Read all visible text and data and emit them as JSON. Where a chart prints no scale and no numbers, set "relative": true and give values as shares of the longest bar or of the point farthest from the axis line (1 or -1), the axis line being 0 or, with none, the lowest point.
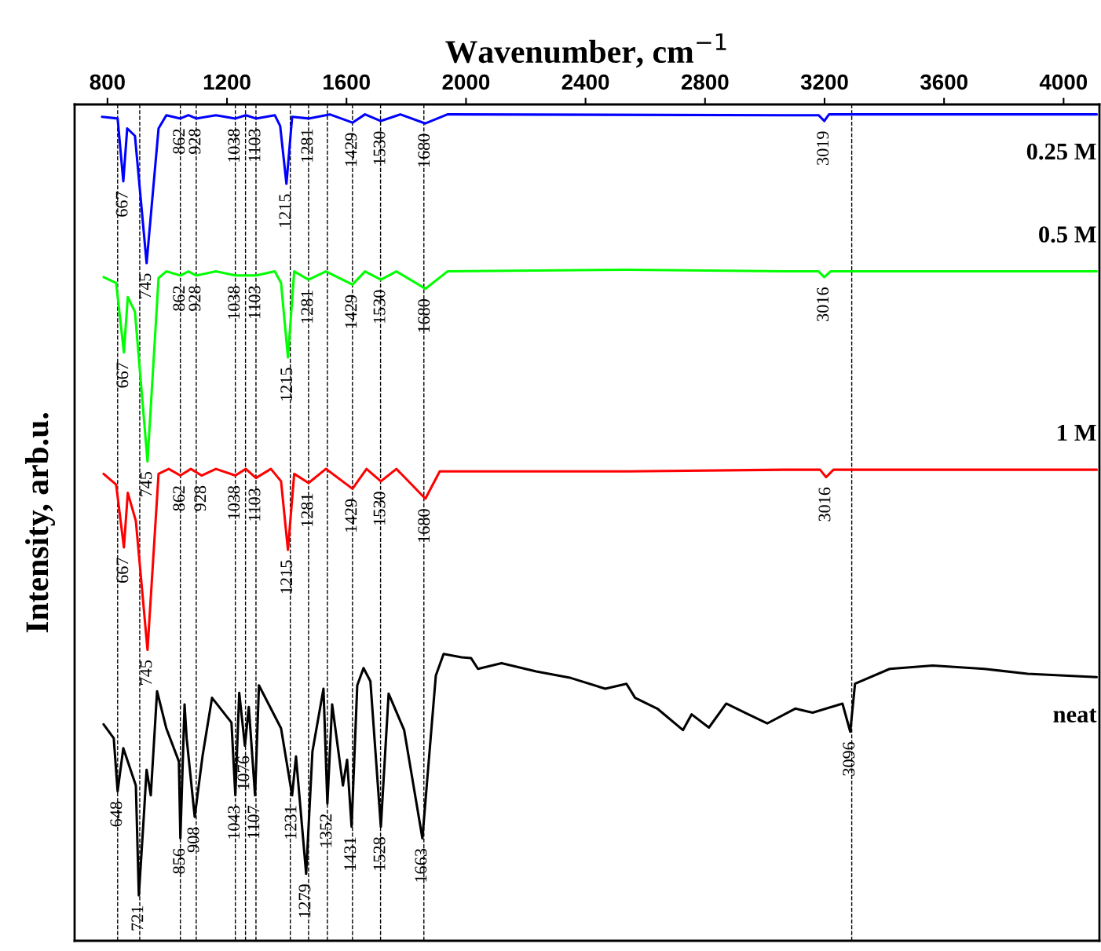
{
  "chart_data": {
    "type": "line",
    "relative": true,
    "xlabel": "Wavenumber, cm$^{−1}$",
    "ylabel": "Intensity, arb.u.",
    "xlim": [
      690,
      4120
    ],
    "xticks": [
      800,
      1200,
      1600,
      2000,
      2400,
      2800,
      3200,
      3600,
      4000
    ],
    "tick_labels": "x",
    "grid": false,
    "legend": false,
    "line_style": "solid",
    "marker": "none",
    "series": [
      {
        "name": "0.25 M",
        "color": "#0000ff",
        "x": [
          782,
          834,
          853,
          866,
          892,
          931,
          971,
          997,
          1044,
          1071,
          1097,
          1163,
          1228,
          1263,
          1297,
          1360,
          1378,
          1399,
          1418,
          1473,
          1544,
          1620,
          1662,
          1715,
          1780,
          1864,
          1938,
          3068,
          3180,
          3199,
          3215,
          4111
        ],
        "values": [
          0.997,
          0.995,
          0.919,
          0.983,
          0.974,
          0.82,
          0.983,
          0.999,
          0.995,
          0.999,
          0.995,
          0.999,
          0.995,
          0.999,
          0.995,
          0.999,
          0.986,
          0.916,
          0.997,
          0.995,
          1.0,
          0.99,
          1.0,
          0.992,
          1.0,
          0.989,
          1.0,
          0.999,
          0.999,
          0.992,
          1.0,
          1.0
        ]
      },
      {
        "name": "0.5 M",
        "color": "#00ff00",
        "x": [
          787,
          829,
          855,
          868,
          892,
          934,
          971,
          997,
          1044,
          1071,
          1097,
          1163,
          1228,
          1297,
          1360,
          1381,
          1404,
          1425,
          1473,
          1531,
          1620,
          1662,
          1715,
          1767,
          1864,
          1938,
          2542,
          3068,
          3180,
          3199,
          3220,
          4111
        ],
        "values": [
          0.803,
          0.796,
          0.712,
          0.779,
          0.761,
          0.58,
          0.802,
          0.81,
          0.805,
          0.81,
          0.805,
          0.81,
          0.805,
          0.805,
          0.81,
          0.796,
          0.706,
          0.81,
          0.8,
          0.81,
          0.794,
          0.81,
          0.8,
          0.81,
          0.789,
          0.81,
          0.812,
          0.81,
          0.81,
          0.803,
          0.81,
          0.81
        ]
      },
      {
        "name": "1 M",
        "color": "#ff0000",
        "x": [
          787,
          829,
          855,
          868,
          895,
          934,
          971,
          1005,
          1044,
          1079,
          1115,
          1163,
          1228,
          1263,
          1297,
          1347,
          1381,
          1404,
          1425,
          1473,
          1531,
          1620,
          1667,
          1715,
          1767,
          1864,
          1912,
          2542,
          3068,
          3185,
          3205,
          3230,
          4111
        ],
        "values": [
          0.565,
          0.552,
          0.476,
          0.542,
          0.508,
          0.352,
          0.565,
          0.571,
          0.563,
          0.571,
          0.563,
          0.571,
          0.563,
          0.571,
          0.56,
          0.571,
          0.556,
          0.473,
          0.565,
          0.554,
          0.571,
          0.547,
          0.571,
          0.556,
          0.571,
          0.535,
          0.568,
          0.568,
          0.57,
          0.57,
          0.561,
          0.57,
          0.57
        ]
      },
      {
        "name": "neat",
        "color": "#000000",
        "x": [
          787,
          821,
          834,
          853,
          895,
          905,
          921,
          931,
          945,
          966,
          997,
          1039,
          1044,
          1058,
          1065,
          1092,
          1118,
          1150,
          1215,
          1228,
          1241,
          1260,
          1273,
          1294,
          1307,
          1381,
          1418,
          1431,
          1465,
          1486,
          1523,
          1536,
          1552,
          1588,
          1602,
          1617,
          1636,
          1657,
          1680,
          1715,
          1741,
          1793,
          1854,
          1899,
          1925,
          1985,
          2017,
          2040,
          2119,
          2235,
          2351,
          2466,
          2537,
          2566,
          2640,
          2726,
          2755,
          2813,
          2871,
          2934,
          3008,
          3102,
          3160,
          3260,
          3286,
          3302,
          3418,
          3562,
          3735,
          3880,
          4111
        ],
        "values": [
          0.262,
          0.245,
          0.181,
          0.233,
          0.188,
          0.055,
          0.147,
          0.207,
          0.176,
          0.302,
          0.257,
          0.217,
          0.124,
          0.286,
          0.245,
          0.15,
          0.223,
          0.294,
          0.264,
          0.176,
          0.3,
          0.236,
          0.283,
          0.176,
          0.309,
          0.257,
          0.176,
          0.223,
          0.081,
          0.229,
          0.305,
          0.166,
          0.286,
          0.188,
          0.219,
          0.138,
          0.309,
          0.33,
          0.314,
          0.138,
          0.299,
          0.255,
          0.124,
          0.321,
          0.347,
          0.343,
          0.342,
          0.329,
          0.336,
          0.326,
          0.318,
          0.305,
          0.311,
          0.294,
          0.281,
          0.255,
          0.274,
          0.258,
          0.287,
          0.276,
          0.263,
          0.281,
          0.276,
          0.287,
          0.253,
          0.311,
          0.329,
          0.333,
          0.329,
          0.323,
          0.319
        ]
      }
    ],
    "ref_lines": [
      {
        "axis": "x",
        "value": 834,
        "label": null,
        "color": "#000000",
        "line_style": "dashed"
      },
      {
        "axis": "x",
        "value": 908,
        "label": null,
        "color": "#000000",
        "line_style": "dashed"
      },
      {
        "axis": "x",
        "value": 1044,
        "label": null,
        "color": "#000000",
        "line_style": "dashed"
      },
      {
        "axis": "x",
        "value": 1097,
        "label": null,
        "color": "#000000",
        "line_style": "dashed"
      },
      {
        "axis": "x",
        "value": 1228,
        "label": null,
        "color": "#000000",
        "line_style": "dashed"
      },
      {
        "axis": "x",
        "value": 1262,
        "label": null,
        "color": "#000000",
        "line_style": "dashed"
      },
      {
        "axis": "x",
        "value": 1297,
        "label": null,
        "color": "#000000",
        "line_style": "dashed"
      },
      {
        "axis": "x",
        "value": 1412,
        "label": null,
        "color": "#000000",
        "line_style": "dashed"
      },
      {
        "axis": "x",
        "value": 1473,
        "label": null,
        "color": "#000000",
        "line_style": "dashed"
      },
      {
        "axis": "x",
        "value": 1536,
        "label": null,
        "color": "#000000",
        "line_style": "dashed"
      },
      {
        "axis": "x",
        "value": 1620,
        "label": null,
        "color": "#000000",
        "line_style": "dashed"
      },
      {
        "axis": "x",
        "value": 1714,
        "label": null,
        "color": "#000000",
        "line_style": "dashed"
      },
      {
        "axis": "x",
        "value": 1859,
        "label": null,
        "color": "#000000",
        "line_style": "dashed"
      },
      {
        "axis": "x",
        "value": 3291,
        "label": null,
        "color": "#000000",
        "line_style": "dashed"
      }
    ],
    "annotations": [
      {
        "text": "667",
        "x": 853,
        "y": 0.919
      },
      {
        "text": "745",
        "x": 931,
        "y": 0.82
      },
      {
        "text": "862",
        "x": 1044,
        "y": 0.995
      },
      {
        "text": "928",
        "x": 1097,
        "y": 0.995
      },
      {
        "text": "1038",
        "x": 1228,
        "y": 0.995
      },
      {
        "text": "1103",
        "x": 1297,
        "y": 0.995
      },
      {
        "text": "1215",
        "x": 1399,
        "y": 0.916
      },
      {
        "text": "1281",
        "x": 1473,
        "y": 0.995
      },
      {
        "text": "1429",
        "x": 1620,
        "y": 0.99
      },
      {
        "text": "1530",
        "x": 1715,
        "y": 0.992
      },
      {
        "text": "1680",
        "x": 1864,
        "y": 0.989
      },
      {
        "text": "3019",
        "x": 3199,
        "y": 0.992
      },
      {
        "text": "667",
        "x": 855,
        "y": 0.712
      },
      {
        "text": "745",
        "x": 934,
        "y": 0.58
      },
      {
        "text": "862",
        "x": 1044,
        "y": 0.805
      },
      {
        "text": "928",
        "x": 1097,
        "y": 0.805
      },
      {
        "text": "1038",
        "x": 1228,
        "y": 0.805
      },
      {
        "text": "1103",
        "x": 1297,
        "y": 0.805
      },
      {
        "text": "1215",
        "x": 1404,
        "y": 0.706
      },
      {
        "text": "1281",
        "x": 1473,
        "y": 0.8
      },
      {
        "text": "1429",
        "x": 1620,
        "y": 0.794
      },
      {
        "text": "1530",
        "x": 1715,
        "y": 0.8
      },
      {
        "text": "1680",
        "x": 1864,
        "y": 0.789
      },
      {
        "text": "3016",
        "x": 3199,
        "y": 0.803
      },
      {
        "text": "667",
        "x": 855,
        "y": 0.476
      },
      {
        "text": "745",
        "x": 934,
        "y": 0.352
      },
      {
        "text": "862",
        "x": 1044,
        "y": 0.563
      },
      {
        "text": "928",
        "x": 1115,
        "y": 0.563
      },
      {
        "text": "1038",
        "x": 1228,
        "y": 0.563
      },
      {
        "text": "1103",
        "x": 1297,
        "y": 0.56
      },
      {
        "text": "1215",
        "x": 1404,
        "y": 0.473
      },
      {
        "text": "1281",
        "x": 1473,
        "y": 0.554
      },
      {
        "text": "1429",
        "x": 1620,
        "y": 0.547
      },
      {
        "text": "1530",
        "x": 1715,
        "y": 0.556
      },
      {
        "text": "1680",
        "x": 1864,
        "y": 0.535
      },
      {
        "text": "3016",
        "x": 3205,
        "y": 0.561
      },
      {
        "text": "648",
        "x": 834,
        "y": 0.181
      },
      {
        "text": "721",
        "x": 905,
        "y": 0.055
      },
      {
        "text": "856",
        "x": 1044,
        "y": 0.124
      },
      {
        "text": "908",
        "x": 1092,
        "y": 0.15
      },
      {
        "text": "1043",
        "x": 1228,
        "y": 0.176
      },
      {
        "text": "1076",
        "x": 1260,
        "y": 0.236
      },
      {
        "text": "1107",
        "x": 1294,
        "y": 0.176
      },
      {
        "text": "1231",
        "x": 1418,
        "y": 0.176
      },
      {
        "text": "1279",
        "x": 1465,
        "y": 0.081
      },
      {
        "text": "1352",
        "x": 1536,
        "y": 0.166
      },
      {
        "text": "1431",
        "x": 1617,
        "y": 0.138
      },
      {
        "text": "1528",
        "x": 1715,
        "y": 0.138
      },
      {
        "text": "1663",
        "x": 1854,
        "y": 0.124
      },
      {
        "text": "3096",
        "x": 3286,
        "y": 0.253
      }
    ]
  }
}
